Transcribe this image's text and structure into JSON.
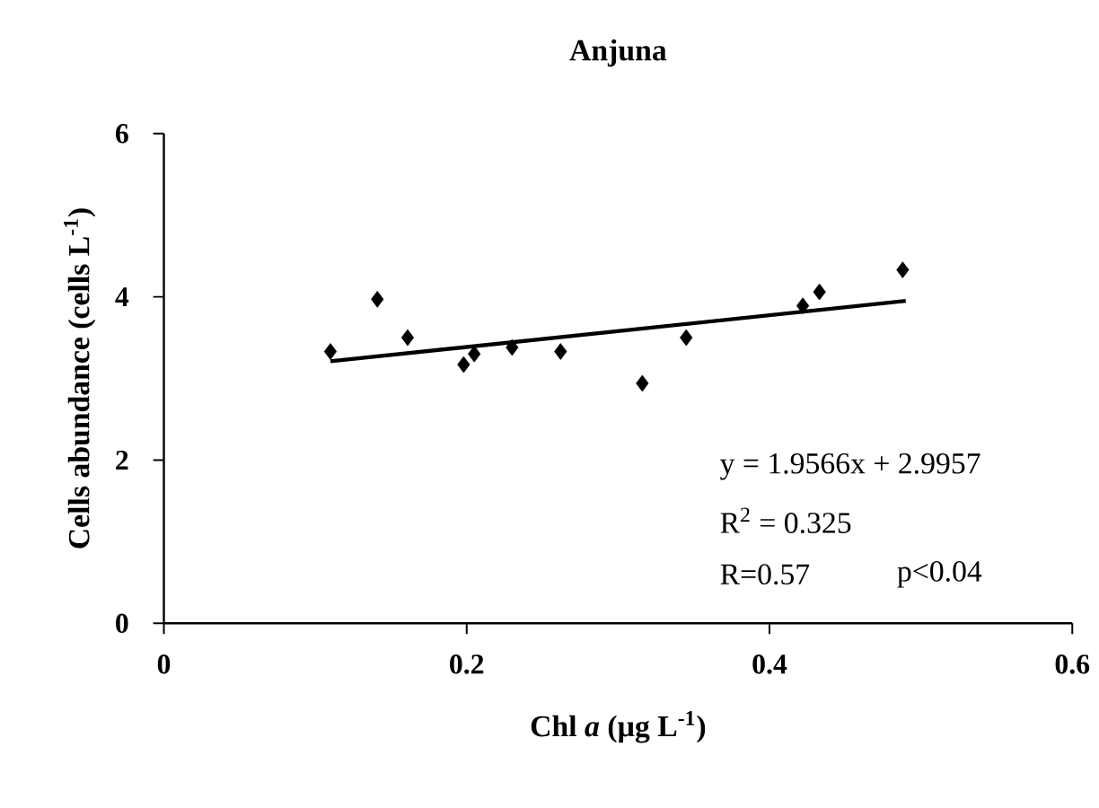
{
  "chart_data": {
    "type": "scatter",
    "title": "Anjuna",
    "xlabel": "Chl *a* (µg L$^{-1}$)",
    "ylabel": "Cells abundance (cells L$^{-1}$)",
    "xlim": [
      0,
      0.6
    ],
    "xticks": [
      0,
      0.2,
      0.4,
      0.6
    ],
    "ylim": [
      0,
      6
    ],
    "yticks": [
      0,
      2,
      4,
      6
    ],
    "series": [
      {
        "marker": "diamond",
        "color": "#000000",
        "x": [
          0.11,
          0.141,
          0.161,
          0.198,
          0.205,
          0.23,
          0.262,
          0.316,
          0.345,
          0.422,
          0.433,
          0.488
        ],
        "values": [
          3.33,
          3.97,
          3.5,
          3.17,
          3.3,
          3.38,
          3.33,
          2.94,
          3.5,
          3.89,
          4.06,
          4.33
        ]
      },
      {
        "type": "line",
        "marker": "none",
        "color": "#000000",
        "x": [
          0.11,
          0.49
        ],
        "values": [
          3.21,
          3.95
        ]
      }
    ],
    "annotations": [
      "y = 1.9566x + 2.9957",
      "R$^{2}$ = 0.325",
      "R=0.57",
      "p<0.04"
    ]
  }
}
